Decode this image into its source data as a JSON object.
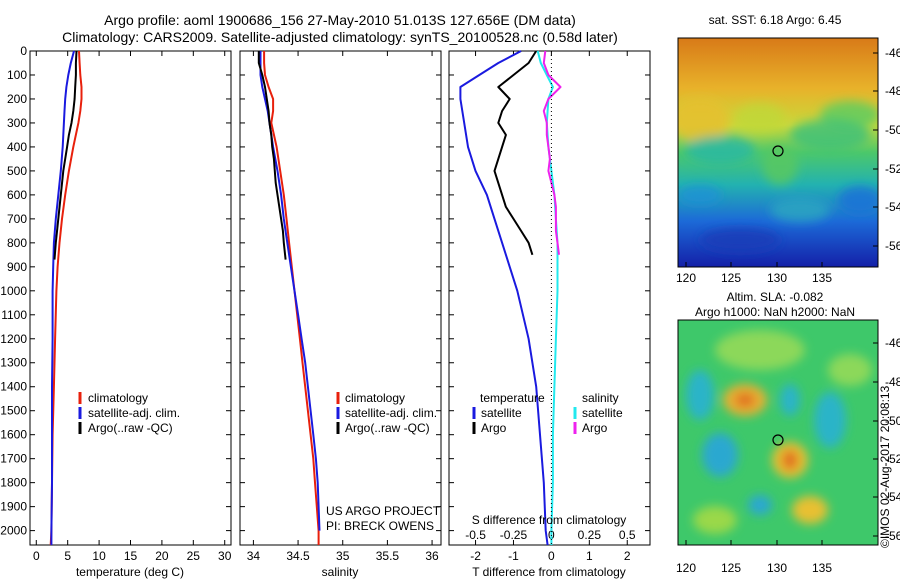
{
  "header": {
    "title_line1": "Argo profile: aoml 1900686_156 27-May-2010 51.013S 127.656E (DM data)",
    "title_line2": "Climatology: CARS2009. Satellite-adjusted climatology: synTS_20100528.nc (0.58d later)"
  },
  "maps": {
    "sst_title": "sat. SST: 6.18 Argo: 6.45",
    "sla_title_line1": "Altim. SLA: -0.082",
    "sla_title_line2": "Argo h1000: NaN h2000: NaN",
    "lat_ticks": [
      "-46",
      "-48",
      "-50",
      "-52",
      "-54",
      "-56"
    ],
    "lon_ticks": [
      "120",
      "125",
      "130",
      "135"
    ]
  },
  "side_text": "©IMOS 02-Aug-2017 20:08:13",
  "project_text": [
    "US ARGO PROJECT",
    "PI: BRECK OWENS"
  ],
  "colors": {
    "climatology": "#e8200c",
    "satellite": "#1a1adf",
    "argo": "#000000",
    "argo_s": "#ee22ee",
    "sat_s": "#22e8ee"
  },
  "chart_data": [
    {
      "type": "line",
      "xlabel": "temperature (deg C)",
      "ylabel": "",
      "xlim": [
        -1,
        31
      ],
      "ylim": [
        2060,
        0
      ],
      "xticks": [
        "0",
        "5",
        "10",
        "15",
        "20",
        "25",
        "30"
      ],
      "yticks": [
        "0",
        "100",
        "200",
        "300",
        "400",
        "500",
        "600",
        "700",
        "800",
        "900",
        "1000",
        "1100",
        "1200",
        "1300",
        "1400",
        "1500",
        "1600",
        "1700",
        "1800",
        "1900",
        "2000"
      ],
      "legend": [
        "climatology",
        "satellite-adj. clim.",
        "Argo(..raw -QC)"
      ],
      "series": [
        {
          "name": "climatology",
          "color": "#e8200c",
          "depth": [
            0,
            50,
            100,
            150,
            200,
            250,
            300,
            400,
            500,
            600,
            700,
            800,
            900,
            1000,
            1200,
            1400,
            1600,
            1800,
            2000,
            2060
          ],
          "values": [
            6.8,
            6.9,
            7.0,
            7.2,
            7.2,
            7.0,
            6.7,
            5.9,
            5.2,
            4.6,
            4.1,
            3.7,
            3.4,
            3.2,
            3.0,
            2.8,
            2.6,
            2.5,
            2.4,
            2.3
          ]
        },
        {
          "name": "satellite-adj. clim.",
          "color": "#1a1adf",
          "depth": [
            0,
            50,
            100,
            150,
            200,
            250,
            300,
            400,
            500,
            600,
            700,
            800,
            900,
            1000,
            1200,
            1400,
            1600,
            1800,
            2000,
            2060
          ],
          "values": [
            6.0,
            5.5,
            5.1,
            4.8,
            4.6,
            4.5,
            4.4,
            4.2,
            3.9,
            3.5,
            3.1,
            2.8,
            2.7,
            2.6,
            2.6,
            2.5,
            2.5,
            2.5,
            2.4,
            2.4
          ]
        },
        {
          "name": "Argo(..raw -QC)",
          "color": "#000000",
          "depth": [
            0,
            50,
            100,
            150,
            200,
            250,
            300,
            350,
            400,
            450,
            500,
            600,
            700,
            800,
            870
          ],
          "values": [
            6.4,
            6.3,
            6.3,
            6.2,
            6.1,
            5.9,
            5.6,
            5.2,
            4.9,
            4.6,
            4.3,
            3.9,
            3.5,
            3.1,
            2.9
          ]
        }
      ]
    },
    {
      "type": "line",
      "xlabel": "salinity",
      "ylabel": "",
      "xlim": [
        33.85,
        36.1
      ],
      "ylim": [
        2060,
        0
      ],
      "xticks": [
        "34",
        "34.5",
        "35",
        "35.5",
        "36"
      ],
      "legend": [
        "climatology",
        "satellite-adj. clim.",
        "Argo(..raw -QC)"
      ],
      "series": [
        {
          "name": "climatology",
          "color": "#e8200c",
          "depth": [
            0,
            50,
            100,
            150,
            200,
            250,
            300,
            400,
            500,
            600,
            700,
            800,
            900,
            1000,
            1100,
            1200,
            1300,
            1400,
            1500,
            1600,
            1700,
            1800,
            1900,
            2000,
            2060
          ],
          "values": [
            34.12,
            34.12,
            34.13,
            34.17,
            34.22,
            34.22,
            34.2,
            34.26,
            34.3,
            34.34,
            34.37,
            34.4,
            34.43,
            34.46,
            34.49,
            34.52,
            34.55,
            34.58,
            34.61,
            34.64,
            34.67,
            34.69,
            34.71,
            34.73,
            34.73
          ]
        },
        {
          "name": "satellite-adj. clim.",
          "color": "#1a1adf",
          "depth": [
            0,
            50,
            100,
            150,
            200,
            250,
            300,
            400,
            500,
            600,
            700,
            800,
            900,
            1000,
            1100,
            1200,
            1300,
            1400,
            1500,
            1600,
            1700,
            1800,
            1900,
            2000
          ],
          "values": [
            34.08,
            34.08,
            34.08,
            34.1,
            34.13,
            34.16,
            34.18,
            34.22,
            34.27,
            34.31,
            34.34,
            34.38,
            34.42,
            34.46,
            34.5,
            34.54,
            34.58,
            34.61,
            34.64,
            34.67,
            34.7,
            34.72,
            34.73,
            34.74
          ]
        },
        {
          "name": "Argo(..raw -QC)",
          "color": "#000000",
          "depth": [
            0,
            50,
            100,
            150,
            200,
            250,
            300,
            350,
            400,
            450,
            500,
            550,
            600,
            650,
            700,
            750,
            800,
            870
          ],
          "values": [
            34.06,
            34.06,
            34.1,
            34.13,
            34.15,
            34.17,
            34.18,
            34.2,
            34.21,
            34.23,
            34.24,
            34.25,
            34.27,
            34.29,
            34.31,
            34.33,
            34.34,
            34.36
          ]
        }
      ]
    },
    {
      "type": "line",
      "xlabel": "T difference from climatology",
      "x2label": "S difference from climatology",
      "xlim": [
        -2.7,
        2.6
      ],
      "x2lim": [
        -0.675,
        0.65
      ],
      "ylim": [
        2060,
        0
      ],
      "xticks": [
        "-2",
        "-1",
        "0",
        "1",
        "2"
      ],
      "x2ticks": [
        "-0.5",
        "-0.25",
        "0",
        "0.25",
        "0.5"
      ],
      "legend_temperature": [
        "temperature",
        "satellite",
        "Argo"
      ],
      "legend_salinity": [
        "salinity",
        "satellite",
        "Argo"
      ],
      "series": [
        {
          "name": "satellite",
          "axis": "temperature",
          "color": "#1a1adf",
          "depth": [
            0,
            50,
            100,
            150,
            200,
            300,
            400,
            500,
            600,
            700,
            800,
            900,
            1000,
            1200,
            1400,
            1600,
            1800,
            2000,
            2060
          ],
          "values": [
            -0.8,
            -1.4,
            -1.9,
            -2.4,
            -2.4,
            -2.3,
            -2.2,
            -2.0,
            -1.7,
            -1.5,
            -1.3,
            -1.1,
            -0.9,
            -0.6,
            -0.4,
            -0.3,
            -0.2,
            -0.15,
            -0.1
          ]
        },
        {
          "name": "Argo",
          "axis": "temperature",
          "color": "#000000",
          "depth": [
            0,
            50,
            100,
            150,
            200,
            250,
            300,
            350,
            400,
            450,
            500,
            550,
            600,
            650,
            700,
            750,
            800,
            850
          ],
          "values": [
            -0.4,
            -0.6,
            -1.0,
            -1.4,
            -1.1,
            -1.3,
            -1.4,
            -1.2,
            -1.3,
            -1.4,
            -1.5,
            -1.4,
            -1.3,
            -1.2,
            -1.0,
            -0.8,
            -0.6,
            -0.5
          ]
        },
        {
          "name": "satellite",
          "axis": "salinity",
          "color": "#22e8ee",
          "depth": [
            0,
            50,
            100,
            150,
            200,
            300,
            400,
            500,
            600,
            700,
            800,
            900,
            1000,
            1200,
            1400,
            1600,
            1800,
            2000,
            2060
          ],
          "values": [
            -0.09,
            -0.07,
            -0.03,
            0.01,
            -0.02,
            -0.03,
            -0.02,
            0.0,
            0.02,
            0.03,
            0.04,
            0.04,
            0.04,
            0.03,
            0.02,
            0.01,
            0.01,
            0.0,
            0.0
          ]
        },
        {
          "name": "Argo",
          "axis": "salinity",
          "color": "#ee22ee",
          "depth": [
            0,
            50,
            100,
            150,
            200,
            250,
            300,
            350,
            400,
            450,
            500,
            550,
            600,
            650,
            700,
            750,
            800,
            850
          ],
          "values": [
            -0.04,
            -0.05,
            -0.02,
            0.06,
            -0.02,
            -0.05,
            -0.03,
            -0.03,
            -0.02,
            -0.01,
            -0.02,
            0.0,
            0.02,
            0.03,
            0.03,
            0.03,
            0.04,
            0.05
          ]
        }
      ]
    }
  ]
}
